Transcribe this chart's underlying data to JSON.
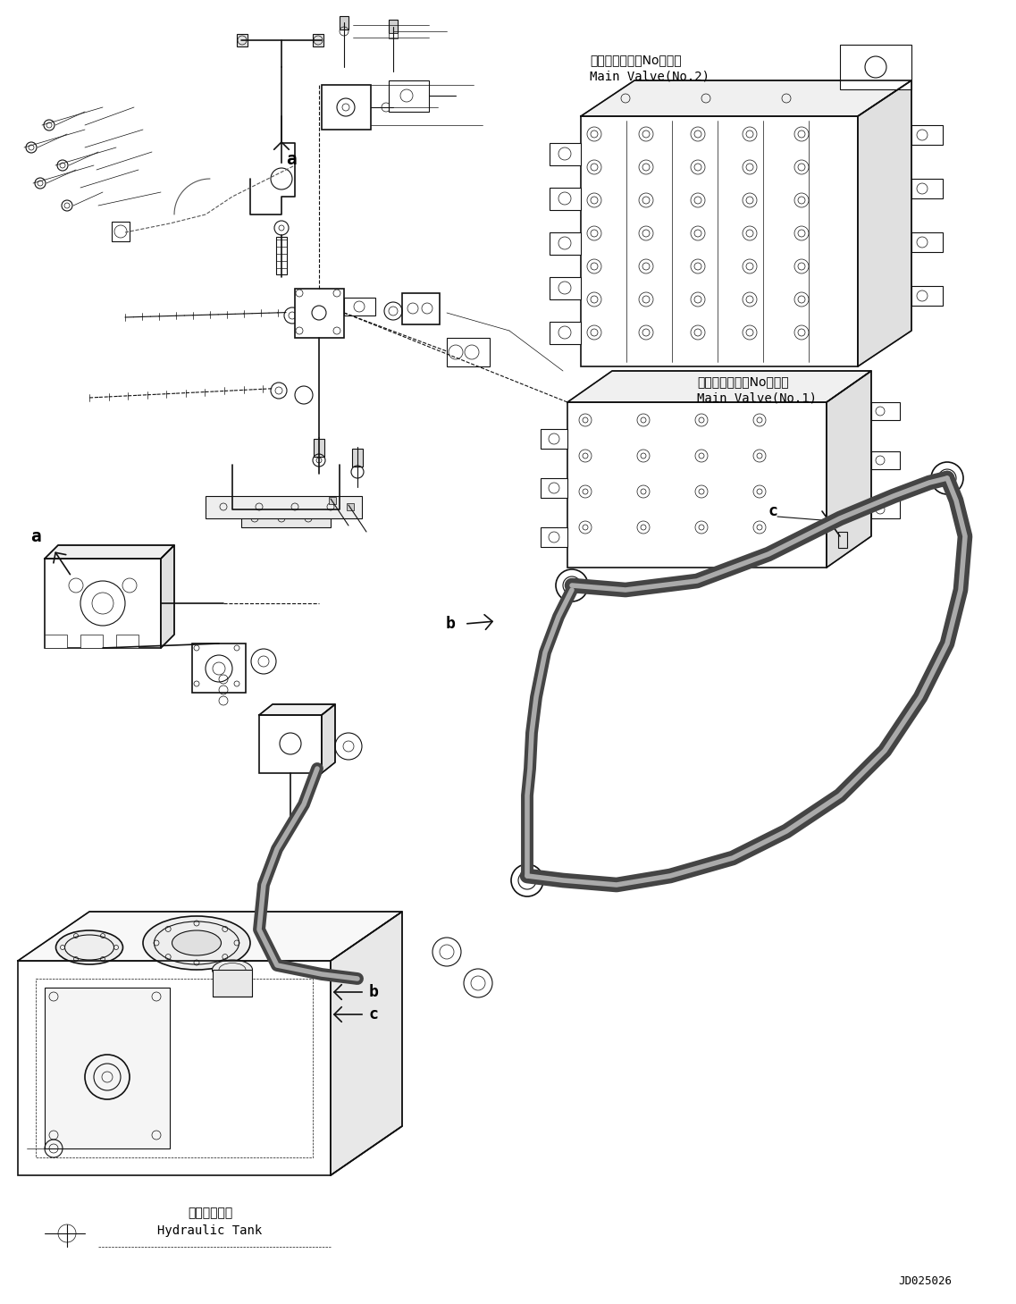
{
  "background_color": "#ffffff",
  "label_main_valve_2_jp": "メインバルブ（No．２）",
  "label_main_valve_2_en": "Main Valve(No.2)",
  "label_main_valve_1_jp": "メインバルブ（No．１）",
  "label_main_valve_1_en": "Main Valve(No.1)",
  "label_hydraulic_tank_jp": "作動油タンク",
  "label_hydraulic_tank_en": "Hydraulic Tank",
  "label_doc": "JD025026",
  "figsize": [
    11.37,
    14.59
  ],
  "dpi": 100
}
